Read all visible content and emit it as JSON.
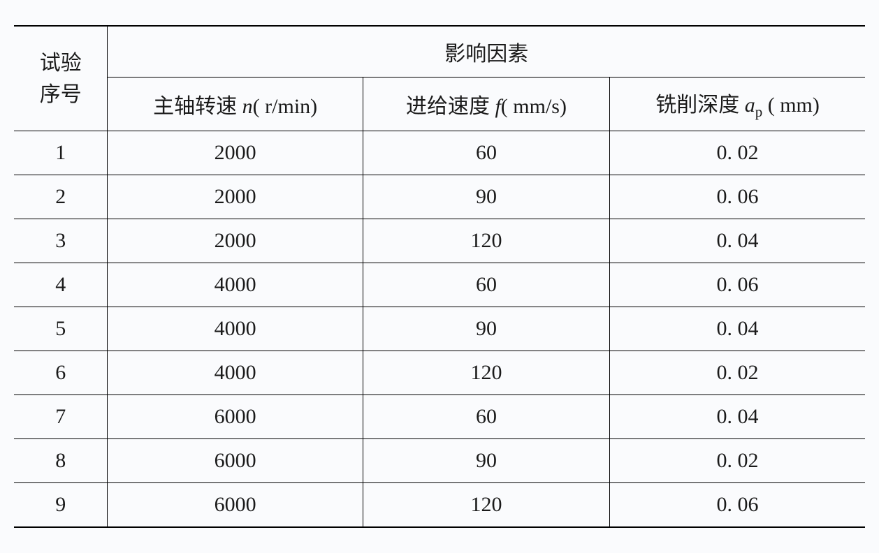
{
  "table": {
    "type": "table",
    "background_color": "#fafbfd",
    "border_color_thick": "#000000",
    "border_color_thin": "#000000",
    "border_width_thick": 2,
    "border_width_thin": 1,
    "font_family": "SimSun",
    "font_size": 30,
    "text_color": "#1a1a1a",
    "header": {
      "row_label_line1": "试验",
      "row_label_line2": "序号",
      "group_label": "影响因素",
      "col1_prefix": "主轴转速 ",
      "col1_var": "n",
      "col1_unit": "( r/min)",
      "col2_prefix": "进给速度 ",
      "col2_var": "f",
      "col2_unit": "( mm/s)",
      "col3_prefix": "铣削深度 ",
      "col3_var": "a",
      "col3_sub": "p",
      "col3_unit": " ( mm)"
    },
    "columns": [
      "试验序号",
      "主轴转速 n(r/min)",
      "进给速度 f(mm/s)",
      "铣削深度 aₚ(mm)"
    ],
    "column_widths_pct": [
      11,
      30,
      29,
      30
    ],
    "rows": [
      {
        "seq": "1",
        "spindle": "2000",
        "feed": "60",
        "depth": "0. 02"
      },
      {
        "seq": "2",
        "spindle": "2000",
        "feed": "90",
        "depth": "0. 06"
      },
      {
        "seq": "3",
        "spindle": "2000",
        "feed": "120",
        "depth": "0. 04"
      },
      {
        "seq": "4",
        "spindle": "4000",
        "feed": "60",
        "depth": "0. 06"
      },
      {
        "seq": "5",
        "spindle": "4000",
        "feed": "90",
        "depth": "0. 04"
      },
      {
        "seq": "6",
        "spindle": "4000",
        "feed": "120",
        "depth": "0. 02"
      },
      {
        "seq": "7",
        "spindle": "6000",
        "feed": "60",
        "depth": "0. 04"
      },
      {
        "seq": "8",
        "spindle": "6000",
        "feed": "90",
        "depth": "0. 02"
      },
      {
        "seq": "9",
        "spindle": "6000",
        "feed": "120",
        "depth": "0. 06"
      }
    ]
  }
}
